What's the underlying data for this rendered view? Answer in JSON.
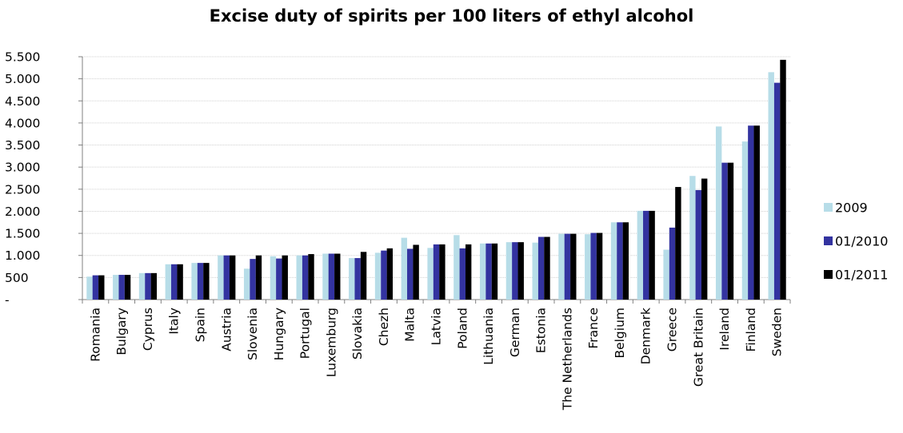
{
  "chart_data": {
    "type": "bar",
    "title": "Excise duty of spirits per 100 liters of ethyl alcohol",
    "xlabel": "",
    "ylabel": "",
    "ylim": [
      0,
      5500
    ],
    "y_ticks": [
      "-",
      "500",
      "1.000",
      "1.500",
      "2.000",
      "2.500",
      "3.000",
      "3.500",
      "4.000",
      "4.500",
      "5.000",
      "5.500"
    ],
    "grid": true,
    "legend_position": "right",
    "categories": [
      "Romania",
      "Bulgary",
      "Cyprus",
      "Italy",
      "Spain",
      "Austria",
      "Slovenia",
      "Hungary",
      "Portugal",
      "Luxemburg",
      "Slovakia",
      "Chezh",
      "Malta",
      "Latvia",
      "Poland",
      "Lithuania",
      "German",
      "Estonia",
      "The Netherlands",
      "France",
      "Belgium",
      "Denmark",
      "Greece",
      "Great Britain",
      "Ireland",
      "Finland",
      "Sweden"
    ],
    "series": [
      {
        "name": "2009",
        "color": "#b7dde8",
        "values": [
          520,
          560,
          600,
          800,
          830,
          1000,
          700,
          980,
          1000,
          1040,
          940,
          1060,
          1400,
          1170,
          1460,
          1270,
          1300,
          1290,
          1490,
          1480,
          1750,
          2010,
          1130,
          2800,
          3920,
          3580,
          5150
        ]
      },
      {
        "name": "01/2010",
        "color": "#3333a0",
        "values": [
          550,
          560,
          600,
          800,
          830,
          1000,
          920,
          930,
          1000,
          1040,
          940,
          1110,
          1150,
          1250,
          1160,
          1270,
          1300,
          1420,
          1490,
          1510,
          1750,
          2010,
          1630,
          2480,
          3100,
          3940,
          4910
        ]
      },
      {
        "name": "01/2011",
        "color": "#000000",
        "values": [
          550,
          560,
          600,
          800,
          830,
          1000,
          1000,
          1000,
          1030,
          1040,
          1080,
          1160,
          1240,
          1250,
          1250,
          1270,
          1300,
          1420,
          1490,
          1510,
          1750,
          2010,
          2550,
          2740,
          3100,
          3940,
          5430
        ]
      }
    ]
  }
}
